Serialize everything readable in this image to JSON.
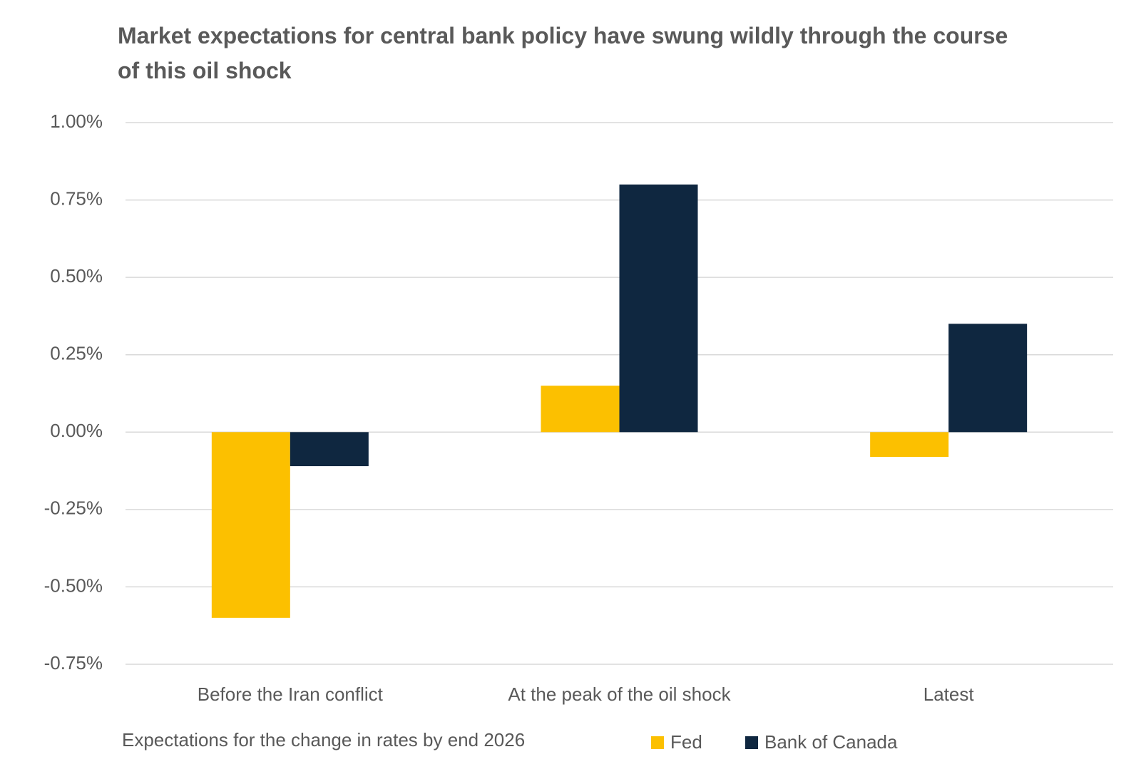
{
  "chart_data": {
    "type": "bar",
    "title": "Market expectations for central bank policy have swung wildly through the course of this oil shock",
    "caption": "Expectations for the change in rates by end 2026",
    "categories": [
      "Before the Iran conflict",
      "At the peak of the oil shock",
      "Latest"
    ],
    "series": [
      {
        "name": "Fed",
        "color": "#fcc000",
        "values": [
          -0.6,
          0.15,
          -0.08
        ]
      },
      {
        "name": "Bank of Canada",
        "color": "#0f2740",
        "values": [
          -0.11,
          0.8,
          0.35
        ]
      }
    ],
    "ylim": [
      -0.75,
      1.0
    ],
    "yticks": [
      {
        "value": 1.0,
        "label": "1.00%"
      },
      {
        "value": 0.75,
        "label": "0.75%"
      },
      {
        "value": 0.5,
        "label": "0.50%"
      },
      {
        "value": 0.25,
        "label": "0.25%"
      },
      {
        "value": 0,
        "label": "0.00%"
      },
      {
        "value": -0.25,
        "label": "-0.25%"
      },
      {
        "value": -0.5,
        "label": "-0.50%"
      },
      {
        "value": -0.75,
        "label": "-0.75%"
      }
    ],
    "grid": true
  }
}
